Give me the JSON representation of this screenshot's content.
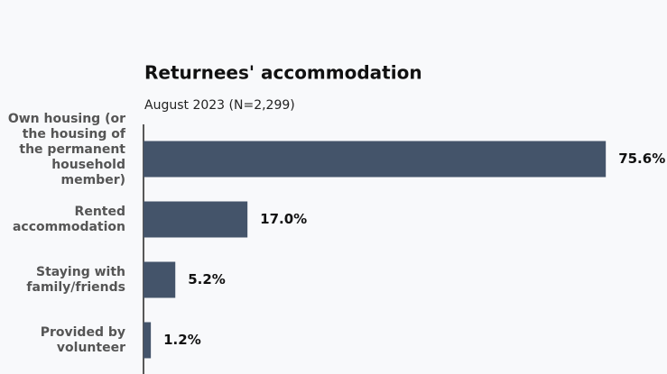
{
  "chart_data": {
    "type": "bar",
    "orientation": "horizontal",
    "title": "Returnees' accommodation",
    "subtitle": "August 2023 (N=2,299)",
    "categories": [
      "Own housing (or the housing of the permanent household member)",
      "Rented accommodation",
      "Staying with family/friends",
      "Provided by volunteer"
    ],
    "values": [
      75.6,
      17.0,
      5.2,
      1.2
    ],
    "value_labels": [
      "75.6%",
      "17.0%",
      "5.2%",
      "1.2%"
    ],
    "color": "#44546a",
    "xlim": [
      0,
      80
    ]
  }
}
